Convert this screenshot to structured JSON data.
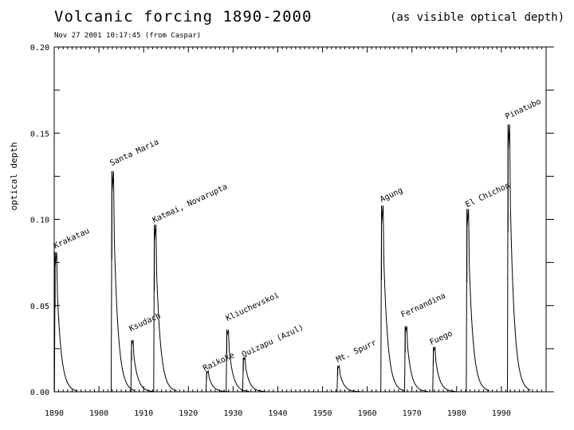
{
  "header": {
    "title": "Volcanic forcing 1890-2000",
    "units_note": "(as visible optical depth)",
    "timestamp": "Nov 27 2001 10:17:45  (from Caspar)"
  },
  "chart_data": {
    "type": "line",
    "title": "Volcanic forcing 1890-2000",
    "xlabel": "",
    "ylabel": "optical depth",
    "xlim": [
      1890,
      2000
    ],
    "ylim": [
      0.0,
      0.2
    ],
    "x_ticks": [
      1890,
      1900,
      1910,
      1920,
      1930,
      1940,
      1950,
      1960,
      1970,
      1980,
      1990
    ],
    "y_ticks": [
      0.0,
      0.05,
      0.1,
      0.15,
      0.2
    ],
    "x_tick_labels": [
      "1890",
      "1900",
      "1910",
      "1920",
      "1930",
      "1940",
      "1950",
      "1960",
      "1970",
      "1980",
      "1990"
    ],
    "y_tick_labels": [
      "0.00",
      "0.05",
      "0.10",
      "0.15",
      "0.20"
    ],
    "grid": false,
    "eruptions": [
      {
        "name": "Krakatau",
        "year": 1890.2,
        "peak": 0.081,
        "label_year": 1890.2,
        "label_value": 0.083
      },
      {
        "name": "Santa Maria",
        "year": 1902.9,
        "peak": 0.128,
        "label_year": 1902.8,
        "label_value": 0.131
      },
      {
        "name": "Ksudach",
        "year": 1907.3,
        "peak": 0.03,
        "label_year": 1907.1,
        "label_value": 0.035
      },
      {
        "name": "Katmai, Novarupta",
        "year": 1912.4,
        "peak": 0.097,
        "label_year": 1912.3,
        "label_value": 0.098
      },
      {
        "name": "Raikoke",
        "year": 1924.1,
        "peak": 0.012,
        "label_year": 1923.6,
        "label_value": 0.012
      },
      {
        "name": "Kliuchevskoi",
        "year": 1928.6,
        "peak": 0.036,
        "label_year": 1928.7,
        "label_value": 0.041
      },
      {
        "name": "Quizapu (Azul)",
        "year": 1932.3,
        "peak": 0.02,
        "label_year": 1932.3,
        "label_value": 0.02
      },
      {
        "name": "Mt. Spurr",
        "year": 1953.4,
        "peak": 0.015,
        "label_year": 1953.4,
        "label_value": 0.017
      },
      {
        "name": "Agung",
        "year": 1963.2,
        "peak": 0.108,
        "label_year": 1963.2,
        "label_value": 0.11
      },
      {
        "name": "Fernandina",
        "year": 1968.5,
        "peak": 0.038,
        "label_year": 1967.9,
        "label_value": 0.043
      },
      {
        "name": "Fuego",
        "year": 1974.8,
        "peak": 0.026,
        "label_year": 1974.3,
        "label_value": 0.027
      },
      {
        "name": "El Chichon",
        "year": 1982.3,
        "peak": 0.106,
        "label_year": 1982.3,
        "label_value": 0.107
      },
      {
        "name": "Pinatubo",
        "year": 1991.5,
        "peak": 0.155,
        "label_year": 1991.2,
        "label_value": 0.158
      }
    ]
  }
}
